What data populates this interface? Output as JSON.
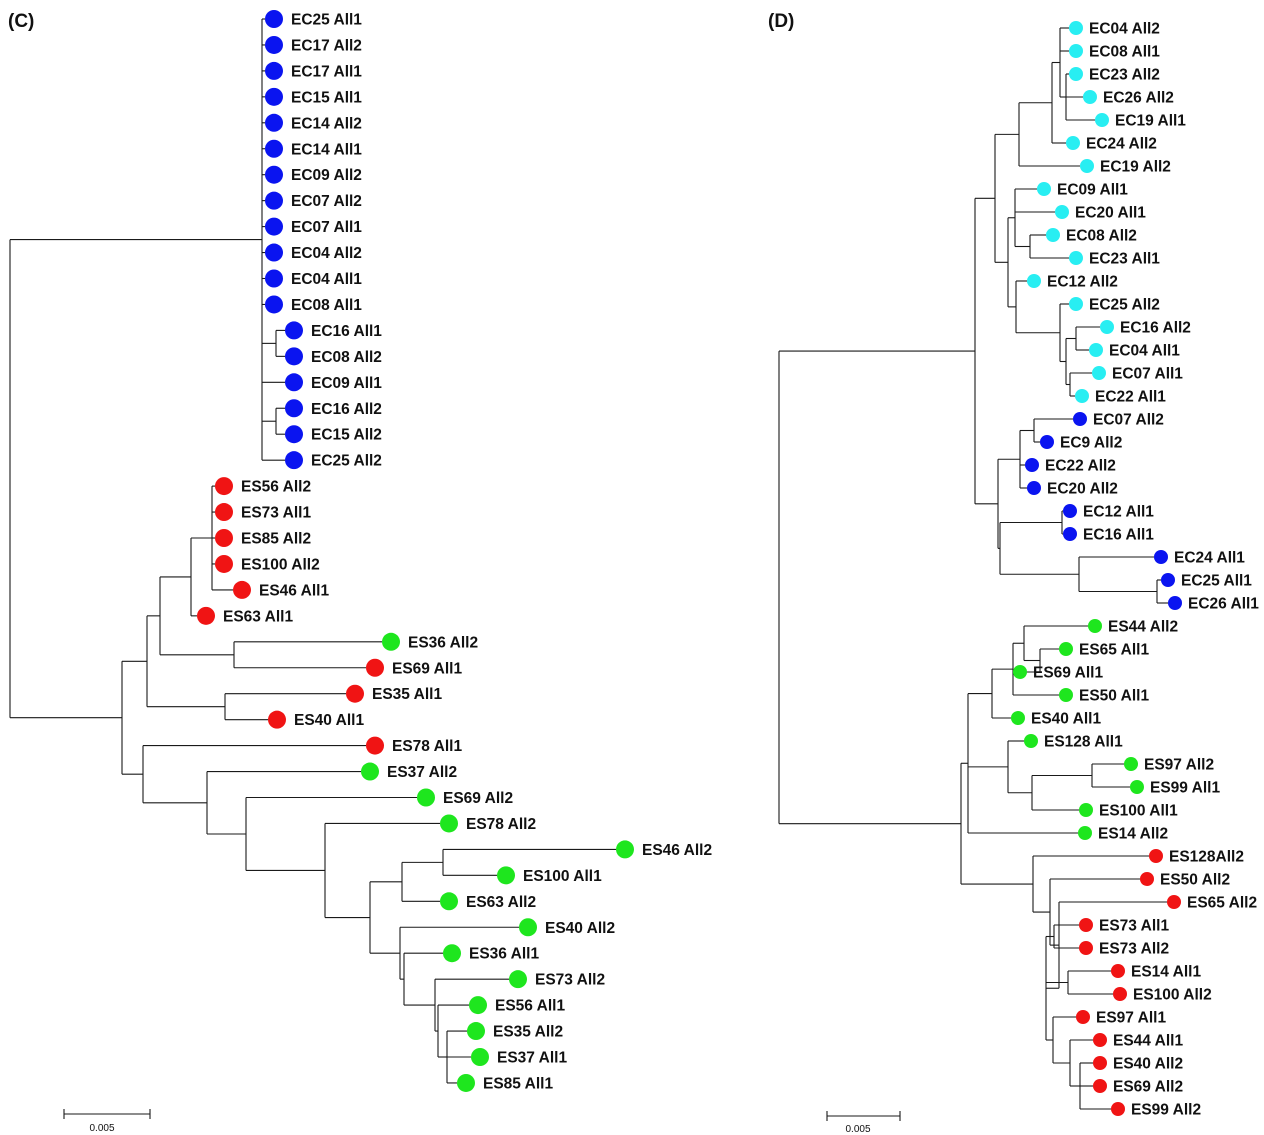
{
  "colors": {
    "blue": "#0a14f0",
    "red": "#f01414",
    "green": "#1ee61e",
    "cyan": "#28eef2",
    "branch": "#1a1a1a"
  },
  "panels": [
    {
      "label": "(C)",
      "scale_bar_label": "0.005",
      "scale_bar_value": 0.005,
      "leaves": [
        {
          "label": "EC25 All1",
          "color": "blue"
        },
        {
          "label": "EC17 All2",
          "color": "blue"
        },
        {
          "label": "EC17 All1",
          "color": "blue"
        },
        {
          "label": "EC15 All1",
          "color": "blue"
        },
        {
          "label": "EC14 All2",
          "color": "blue"
        },
        {
          "label": "EC14 All1",
          "color": "blue"
        },
        {
          "label": "EC09 All2",
          "color": "blue"
        },
        {
          "label": "EC07 All2",
          "color": "blue"
        },
        {
          "label": "EC07 All1",
          "color": "blue"
        },
        {
          "label": "EC04 All2",
          "color": "blue"
        },
        {
          "label": "EC04 All1",
          "color": "blue"
        },
        {
          "label": "EC08 All1",
          "color": "blue"
        },
        {
          "label": "EC16 All1",
          "color": "blue"
        },
        {
          "label": "EC08 All2",
          "color": "blue"
        },
        {
          "label": "EC09 All1",
          "color": "blue"
        },
        {
          "label": "EC16 All2",
          "color": "blue"
        },
        {
          "label": "EC15 All2",
          "color": "blue"
        },
        {
          "label": "EC25 All2",
          "color": "blue"
        },
        {
          "label": "ES56 All2",
          "color": "red"
        },
        {
          "label": "ES73 All1",
          "color": "red"
        },
        {
          "label": "ES85 All2",
          "color": "red"
        },
        {
          "label": "ES100 All2",
          "color": "red"
        },
        {
          "label": "ES46 All1",
          "color": "red"
        },
        {
          "label": "ES63 All1",
          "color": "red"
        },
        {
          "label": "ES36 All2",
          "color": "green"
        },
        {
          "label": "ES69 All1",
          "color": "red"
        },
        {
          "label": "ES35 All1",
          "color": "red"
        },
        {
          "label": "ES40 All1",
          "color": "red"
        },
        {
          "label": "ES78 All1",
          "color": "red"
        },
        {
          "label": "ES37 All2",
          "color": "green"
        },
        {
          "label": "ES69 All2",
          "color": "green"
        },
        {
          "label": "ES78 All2",
          "color": "green"
        },
        {
          "label": "ES46 All2",
          "color": "green"
        },
        {
          "label": "ES100 All1",
          "color": "green"
        },
        {
          "label": "ES63 All2",
          "color": "green"
        },
        {
          "label": "ES40 All2",
          "color": "green"
        },
        {
          "label": "ES36 All1",
          "color": "green"
        },
        {
          "label": "ES73 All2",
          "color": "green"
        },
        {
          "label": "ES56 All1",
          "color": "green"
        },
        {
          "label": "ES35 All2",
          "color": "green"
        },
        {
          "label": "ES37 All1",
          "color": "green"
        },
        {
          "label": "ES85 All1",
          "color": "green"
        }
      ]
    },
    {
      "label": "(D)",
      "scale_bar_label": "0.005",
      "scale_bar_value": 0.005,
      "leaves": [
        {
          "label": "EC04 All2",
          "color": "cyan"
        },
        {
          "label": "EC08 All1",
          "color": "cyan"
        },
        {
          "label": "EC23 All2",
          "color": "cyan"
        },
        {
          "label": "EC26 All2",
          "color": "cyan"
        },
        {
          "label": "EC19 All1",
          "color": "cyan"
        },
        {
          "label": "EC24 All2",
          "color": "cyan"
        },
        {
          "label": "EC19 All2",
          "color": "cyan"
        },
        {
          "label": "EC09 All1",
          "color": "cyan"
        },
        {
          "label": "EC20 All1",
          "color": "cyan"
        },
        {
          "label": "EC08 All2",
          "color": "cyan"
        },
        {
          "label": "EC23 All1",
          "color": "cyan"
        },
        {
          "label": "EC12 All2",
          "color": "cyan"
        },
        {
          "label": "EC25 All2",
          "color": "cyan"
        },
        {
          "label": "EC16 All2",
          "color": "cyan"
        },
        {
          "label": "EC04 All1",
          "color": "cyan"
        },
        {
          "label": "EC07 All1",
          "color": "cyan"
        },
        {
          "label": "EC22 All1",
          "color": "cyan"
        },
        {
          "label": "EC07 All2",
          "color": "blue"
        },
        {
          "label": "EC9 All2",
          "color": "blue"
        },
        {
          "label": "EC22 All2",
          "color": "blue"
        },
        {
          "label": "EC20 All2",
          "color": "blue"
        },
        {
          "label": "EC12 All1",
          "color": "blue"
        },
        {
          "label": "EC16 All1",
          "color": "blue"
        },
        {
          "label": "EC24 All1",
          "color": "blue"
        },
        {
          "label": "EC25 All1",
          "color": "blue"
        },
        {
          "label": "EC26 All1",
          "color": "blue"
        },
        {
          "label": "ES44 All2",
          "color": "green"
        },
        {
          "label": "ES65 All1",
          "color": "green"
        },
        {
          "label": "ES69 All1",
          "color": "green"
        },
        {
          "label": "ES50 All1",
          "color": "green"
        },
        {
          "label": "ES40 All1",
          "color": "green"
        },
        {
          "label": "ES128 All1",
          "color": "green"
        },
        {
          "label": "ES97 All2",
          "color": "green"
        },
        {
          "label": "ES99 All1",
          "color": "green"
        },
        {
          "label": "ES100 All1",
          "color": "green"
        },
        {
          "label": "ES14 All2",
          "color": "green"
        },
        {
          "label": "ES128All2",
          "color": "red"
        },
        {
          "label": "ES50 All2",
          "color": "red"
        },
        {
          "label": "ES65 All2",
          "color": "red"
        },
        {
          "label": "ES73 All1",
          "color": "red"
        },
        {
          "label": "ES73 All2",
          "color": "red"
        },
        {
          "label": "ES14 All1",
          "color": "red"
        },
        {
          "label": "ES100 All2",
          "color": "red"
        },
        {
          "label": "ES97 All1",
          "color": "red"
        },
        {
          "label": "ES44 All1",
          "color": "red"
        },
        {
          "label": "ES40 All2",
          "color": "red"
        },
        {
          "label": "ES69 All2",
          "color": "red"
        },
        {
          "label": "ES99 All2",
          "color": "red"
        }
      ]
    }
  ]
}
